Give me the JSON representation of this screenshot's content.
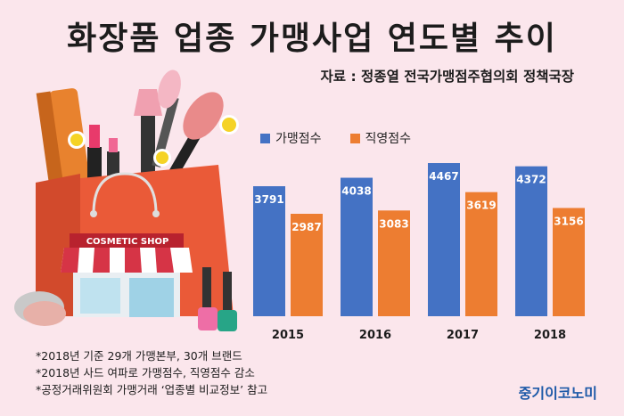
{
  "title": "화장품 업종 가맹사업 연도별 추이",
  "source": "자료 : 정종열 전국가맹점주협의회 정책국장",
  "shop_sign": "COSMETIC SHOP",
  "notes": [
    "*2018년 기준 29개 가맹본부, 30개 브랜드",
    "*2018년 사드 여파로 가맹점수, 직영점수 감소",
    "*공정거래위원회 가맹거래 ‘업종별 비교정보’ 참고"
  ],
  "brand": "중기이코노미",
  "colors": {
    "franchise": "#4472c4",
    "direct": "#ed7d31",
    "background": "#fbe6ec"
  },
  "chart_data": {
    "type": "bar",
    "categories": [
      "2015",
      "2016",
      "2017",
      "2018"
    ],
    "series": [
      {
        "name": "가맹점수",
        "values": [
          3791,
          4038,
          4467,
          4372
        ]
      },
      {
        "name": "직영점수",
        "values": [
          2987,
          3083,
          3619,
          3156
        ]
      }
    ],
    "title": "화장품 업종 가맹사업 연도별 추이",
    "legend": "top-left",
    "grid": false
  }
}
